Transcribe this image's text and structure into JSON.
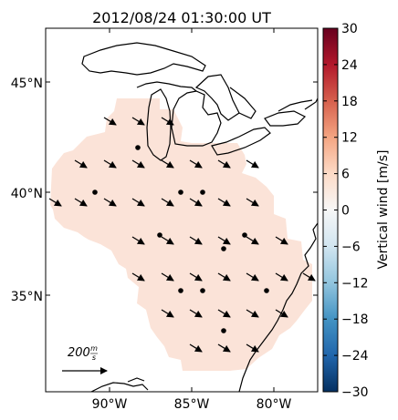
{
  "title": "2012/08/24 01:30:00 UT",
  "colorbar": {
    "label": "Vertical wind [m/s]",
    "ticks": [
      "30",
      "24",
      "18",
      "12",
      "6",
      "0",
      "−6",
      "−12",
      "−18",
      "−24",
      "−30"
    ],
    "range": [
      -30,
      30
    ]
  },
  "axes": {
    "lat_ticks": [
      "45°N",
      "40°N",
      "35°N"
    ],
    "lon_ticks": [
      "90°W",
      "85°W",
      "80°W"
    ]
  },
  "reference_arrow": {
    "label": "200",
    "unit_num": "m",
    "unit_den": "s"
  },
  "field": {
    "vertical_wind_value": 3,
    "fill_color": "#fbe3d8"
  },
  "colors": {
    "land_outline": "#000000",
    "arrow": "#000000"
  }
}
